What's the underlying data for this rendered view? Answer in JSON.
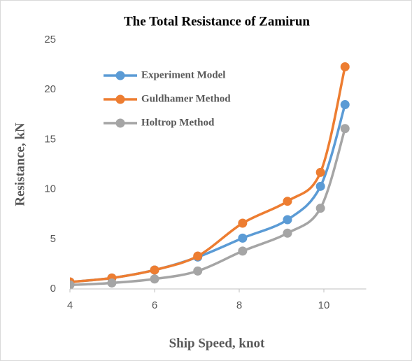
{
  "chart_data": {
    "type": "line",
    "title": "The Total Resistance of Zamirun",
    "xlabel": "Ship Speed, knot",
    "ylabel": "Resistance, kN",
    "x": [
      4,
      4.99,
      6,
      7.02,
      8.08,
      9.14,
      9.92,
      10.5
    ],
    "series": [
      {
        "name": "Experiment Model",
        "color": "#5b9bd5",
        "values": [
          0.7,
          1.1,
          1.9,
          3.2,
          5.1,
          6.95,
          10.3,
          18.5
        ]
      },
      {
        "name": "Guldhamer Method",
        "color": "#ed7d31",
        "values": [
          0.7,
          1.1,
          1.9,
          3.3,
          6.6,
          8.8,
          11.7,
          22.3
        ]
      },
      {
        "name": "Holtrop Method",
        "color": "#a5a5a5",
        "values": [
          0.4,
          0.6,
          1.0,
          1.8,
          3.8,
          5.6,
          8.1,
          16.1
        ]
      }
    ],
    "xlim": [
      4,
      11
    ],
    "xticks": [
      4,
      6,
      8,
      10
    ],
    "ylim": [
      0,
      25
    ],
    "yticks": [
      0,
      5,
      10,
      15,
      20,
      25
    ],
    "legend": "upper left",
    "grid": false
  }
}
